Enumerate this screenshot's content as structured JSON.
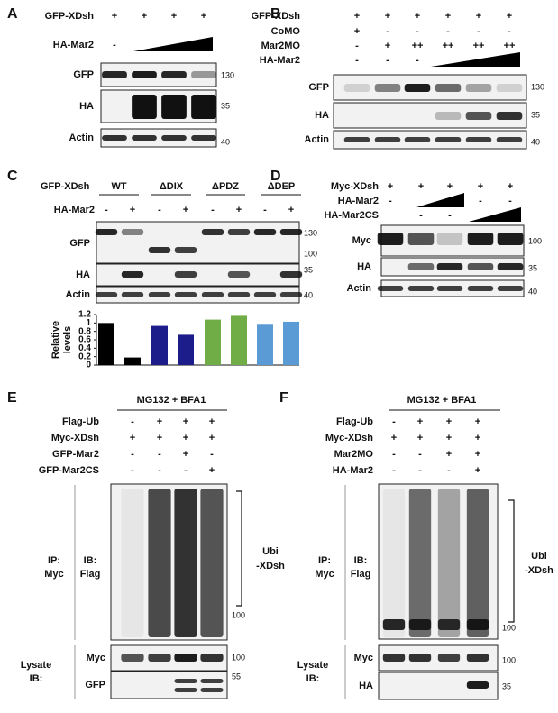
{
  "panels": [
    {
      "letter": "A",
      "treatments": [
        {
          "label": "GFP-XDsh",
          "cells": [
            "+",
            "+",
            "+",
            "+"
          ]
        },
        {
          "label": "HA-Mar2",
          "cells": [
            "-"
          ]
        }
      ],
      "blots": [
        {
          "label": "GFP",
          "markers": [
            "130"
          ]
        },
        {
          "label": "HA",
          "markers": [
            "35"
          ]
        },
        {
          "label": "Actin",
          "markers": [
            "40"
          ]
        }
      ]
    },
    {
      "letter": "B",
      "treatments": [
        {
          "label": "GFP-XDsh",
          "cells": [
            "+",
            "+",
            "+",
            "+",
            "+",
            "+"
          ]
        },
        {
          "label": "CoMO",
          "cells": [
            "+",
            "-",
            "-",
            "-",
            "-",
            "-"
          ]
        },
        {
          "label": "Mar2MO",
          "cells": [
            "-",
            "+",
            "++",
            "++",
            "++",
            "++"
          ]
        },
        {
          "label": "HA-Mar2",
          "cells": [
            "-",
            "-",
            "-"
          ]
        }
      ],
      "blots": [
        {
          "label": "GFP",
          "markers": [
            "130"
          ]
        },
        {
          "label": "HA",
          "markers": [
            "35"
          ]
        },
        {
          "label": "Actin",
          "markers": [
            "40"
          ]
        }
      ]
    },
    {
      "letter": "C",
      "construct_label": "GFP-XDsh",
      "groups": [
        {
          "label": "WT",
          "color": "#111111"
        },
        {
          "label": "ΔDIX",
          "color": "#1c1c8a"
        },
        {
          "label": "ΔPDZ",
          "color": "#5b9a33"
        },
        {
          "label": "ΔDEP",
          "color": "#3f80c0"
        }
      ],
      "treatments": [
        {
          "label": "HA-Mar2",
          "cells": [
            "-",
            "+",
            "-",
            "+",
            "-",
            "+",
            "-",
            "+"
          ]
        }
      ],
      "blots": [
        {
          "label": "GFP",
          "markers": [
            "130",
            "100"
          ]
        },
        {
          "label": "HA",
          "markers": [
            "35"
          ]
        },
        {
          "label": "Actin",
          "markers": [
            "40"
          ]
        }
      ],
      "chart": {
        "type": "bar",
        "ylabel": [
          "Relative",
          "levels"
        ],
        "values": [
          1.0,
          0.18,
          0.93,
          0.72,
          1.08,
          1.17,
          0.98,
          1.03
        ],
        "colors": [
          "#000000",
          "#000000",
          "#1c1c8a",
          "#1c1c8a",
          "#70ad47",
          "#70ad47",
          "#5b9bd5",
          "#5b9bd5"
        ],
        "ylim": [
          0,
          1.2
        ],
        "yticks": [
          0,
          0.2,
          0.4,
          0.6,
          0.8,
          1,
          1.2
        ]
      }
    },
    {
      "letter": "D",
      "treatments": [
        {
          "label": "Myc-XDsh",
          "cells": [
            "+",
            "+",
            "+",
            "+",
            "+"
          ]
        },
        {
          "label": "HA-Mar2",
          "cells": [
            "-",
            "-",
            "-"
          ]
        },
        {
          "label": "HA-Mar2CS",
          "cells": [
            "-",
            "-"
          ]
        }
      ],
      "blots": [
        {
          "label": "Myc",
          "markers": [
            "100"
          ]
        },
        {
          "label": "HA",
          "markers": [
            "35"
          ]
        },
        {
          "label": "Actin",
          "markers": [
            "40"
          ]
        }
      ]
    },
    {
      "letter": "E",
      "header": "MG132 + BFA1",
      "treatments": [
        {
          "label": "Flag-Ub",
          "cells": [
            "-",
            "+",
            "+",
            "+"
          ]
        },
        {
          "label": "Myc-XDsh",
          "cells": [
            "+",
            "+",
            "+",
            "+"
          ]
        },
        {
          "label": "GFP-Mar2",
          "cells": [
            "-",
            "-",
            "+",
            "-"
          ]
        },
        {
          "label": "GFP-Mar2CS",
          "cells": [
            "-",
            "-",
            "-",
            "+"
          ]
        }
      ],
      "ip_label": [
        "IP:",
        "Myc"
      ],
      "ib_label": [
        "IB:",
        "Flag"
      ],
      "bracket_label": [
        "Ubi",
        "-XDsh"
      ],
      "lysate_label": [
        "Lysate",
        "IB:"
      ],
      "blots": [
        {
          "markers": [
            "100"
          ]
        },
        {
          "label": "Myc",
          "markers": [
            "100"
          ]
        },
        {
          "label": "GFP",
          "markers": [
            "55"
          ]
        }
      ]
    },
    {
      "letter": "F",
      "header": "MG132 + BFA1",
      "treatments": [
        {
          "label": "Flag-Ub",
          "cells": [
            "-",
            "+",
            "+",
            "+"
          ]
        },
        {
          "label": "Myc-XDsh",
          "cells": [
            "+",
            "+",
            "+",
            "+"
          ]
        },
        {
          "label": "Mar2MO",
          "cells": [
            "-",
            "-",
            "+",
            "+"
          ]
        },
        {
          "label": "HA-Mar2",
          "cells": [
            "-",
            "-",
            "-",
            "+"
          ]
        }
      ],
      "ip_label": [
        "IP:",
        "Myc"
      ],
      "ib_label": [
        "IB:",
        "Flag"
      ],
      "bracket_label": [
        "Ubi",
        "-XDsh"
      ],
      "lysate_label": [
        "Lysate",
        "IB:"
      ],
      "blots": [
        {
          "markers": [
            "100"
          ]
        },
        {
          "label": "Myc",
          "markers": [
            "100"
          ]
        },
        {
          "label": "HA",
          "markers": [
            "35"
          ]
        }
      ]
    }
  ]
}
